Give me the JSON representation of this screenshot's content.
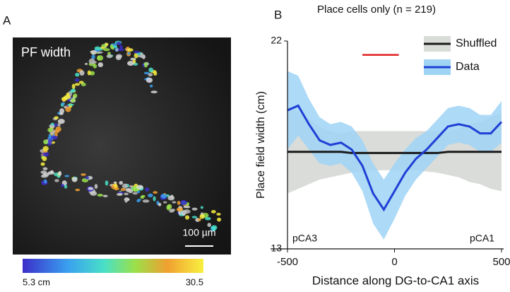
{
  "image_panel": {
    "panel_label": "A",
    "title": "PF width",
    "scale_bar": "100 µm",
    "colorbar_min": "5.3 cm",
    "colorbar_max": "30.5"
  },
  "chart_data": {
    "type": "line",
    "panel_label": "B",
    "title": "Place cells only (n = 219)",
    "y_label": "Place field width (cm)",
    "x_label": "Distance along DG-to-CA1 axis",
    "annotations": [
      "pCA3",
      "pCA1"
    ],
    "x": [
      -500,
      -450,
      -400,
      -350,
      -300,
      -250,
      -200,
      -150,
      -100,
      -50,
      0,
      50,
      100,
      150,
      200,
      250,
      300,
      350,
      400,
      450,
      500
    ],
    "series": [
      {
        "name": "Shuffled",
        "color": "#1a1a1a",
        "band_color": "#d9dcd9",
        "values": [
          17.2,
          17.2,
          17.2,
          17.2,
          17.2,
          17.2,
          17.15,
          17.15,
          17.15,
          17.15,
          17.15,
          17.15,
          17.15,
          17.15,
          17.15,
          17.2,
          17.2,
          17.2,
          17.2,
          17.2,
          17.2
        ],
        "lower": [
          15.4,
          15.6,
          15.8,
          16.0,
          16.1,
          16.2,
          16.3,
          16.35,
          16.4,
          16.4,
          16.4,
          16.4,
          16.4,
          16.35,
          16.3,
          16.2,
          16.1,
          15.9,
          15.8,
          15.6,
          15.5
        ],
        "upper": [
          19.2,
          18.9,
          18.6,
          18.3,
          18.1,
          18.0,
          18.1,
          18.1,
          18.1,
          18.1,
          18.1,
          18.1,
          18.1,
          18.1,
          18.1,
          18.1,
          18.2,
          18.4,
          18.5,
          18.7,
          18.9
        ]
      },
      {
        "name": "Data",
        "color": "#1f3fd6",
        "band_color": "#9fd4f4",
        "values": [
          19.0,
          19.2,
          18.4,
          17.7,
          17.5,
          17.6,
          17.3,
          16.6,
          15.4,
          14.7,
          15.5,
          16.3,
          16.9,
          17.3,
          17.8,
          18.3,
          18.4,
          18.3,
          18.0,
          18.0,
          18.5
        ],
        "lower": [
          17.3,
          17.9,
          17.3,
          16.7,
          16.6,
          16.7,
          16.3,
          15.5,
          14.1,
          13.4,
          14.3,
          15.3,
          16.0,
          16.5,
          17.0,
          17.5,
          17.6,
          17.5,
          17.2,
          17.2,
          17.6
        ],
        "upper": [
          20.7,
          20.5,
          19.5,
          18.7,
          18.4,
          18.5,
          18.3,
          17.7,
          16.7,
          16.0,
          16.7,
          17.3,
          17.8,
          18.1,
          18.6,
          19.1,
          19.2,
          19.1,
          18.8,
          18.8,
          19.4
        ]
      }
    ],
    "highlight": {
      "x": [
        -150,
        20
      ],
      "y": 21.4,
      "color": "#e02020"
    },
    "xlim": [
      -500,
      500
    ],
    "xticks": [
      -500,
      0,
      500
    ],
    "ylim": [
      13,
      22
    ],
    "yticks": [
      13,
      22
    ]
  }
}
